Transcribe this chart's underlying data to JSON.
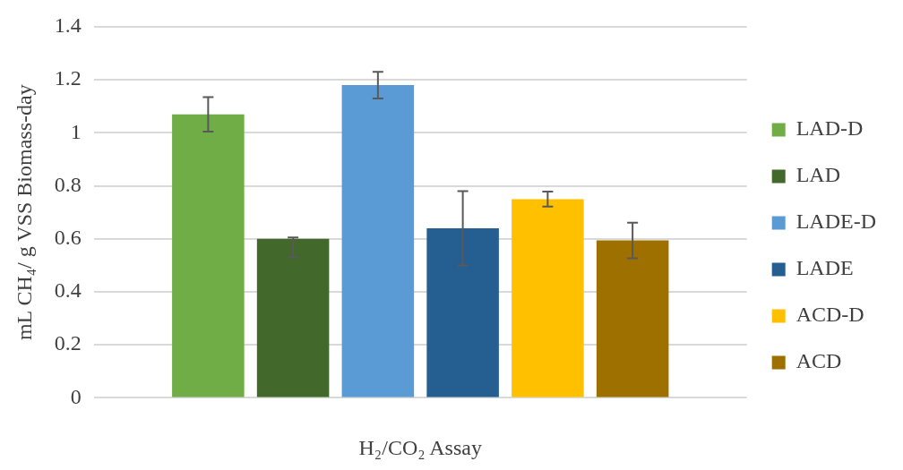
{
  "chart_data": {
    "type": "bar",
    "xlabel": "H₂/CO₂ Assay",
    "ylabel": "mL CH₄/ g VSS Biomass-day",
    "categories": [
      null
    ],
    "series": [
      {
        "name": "LAD-D",
        "color": "#70ad47",
        "values": [
          1.07
        ],
        "errors": [
          0.065
        ]
      },
      {
        "name": "LAD",
        "color": "#43682b",
        "values": [
          0.6
        ],
        "errors": [
          [
            0.53,
            0.605
          ]
        ]
      },
      {
        "name": "LADE-D",
        "color": "#5b9bd5",
        "values": [
          1.18
        ],
        "errors": [
          0.05
        ]
      },
      {
        "name": "LADE",
        "color": "#255e91",
        "values": [
          0.64
        ],
        "errors": [
          0.14
        ]
      },
      {
        "name": "ACD-D",
        "color": "#ffc000",
        "values": [
          0.75
        ],
        "errors": [
          0.028
        ]
      },
      {
        "name": "ACD",
        "color": "#9e7000",
        "values": [
          0.594
        ],
        "errors": [
          0.067
        ]
      }
    ],
    "ylim": [
      0,
      1.4
    ],
    "yticks": [
      0,
      0.2,
      0.4,
      0.6,
      0.8,
      1,
      1.2,
      1.4
    ],
    "grid": "y",
    "legend": "right"
  }
}
